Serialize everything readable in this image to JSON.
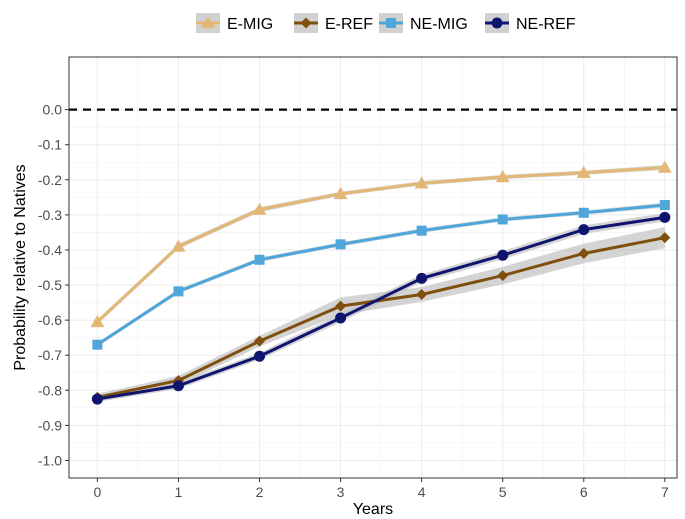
{
  "chart_data": {
    "type": "line",
    "xlabel": "Years",
    "ylabel": "Probability relative to Natives",
    "x": [
      0,
      1,
      2,
      3,
      4,
      5,
      6,
      7
    ],
    "xticks": [
      "0",
      "1",
      "2",
      "3",
      "4",
      "5",
      "6",
      "7"
    ],
    "xlim": [
      -0.35,
      7.15
    ],
    "ylim": [
      -1.05,
      0.15
    ],
    "yticks": [
      0.0,
      -0.1,
      -0.2,
      -0.3,
      -0.4,
      -0.5,
      -0.6,
      -0.7,
      -0.8,
      -0.9,
      -1.0
    ],
    "ytick_labels": [
      "0.0",
      "-0.1",
      "-0.2",
      "-0.3",
      "-0.4",
      "-0.5",
      "-0.6",
      "-0.7",
      "-0.8",
      "-0.9",
      "-1.0"
    ],
    "reference_line": {
      "y": 0.0,
      "style": "dashed",
      "color": "#000000"
    },
    "grid": true,
    "legend_position": "top",
    "series": [
      {
        "name": "E-MIG",
        "color": "#E3B876",
        "marker": "triangle",
        "values": [
          -0.605,
          -0.39,
          -0.285,
          -0.24,
          -0.21,
          -0.192,
          -0.18,
          -0.165
        ],
        "ci_lower": [
          -0.612,
          -0.397,
          -0.292,
          -0.246,
          -0.216,
          -0.198,
          -0.186,
          -0.172
        ],
        "ci_upper": [
          -0.598,
          -0.383,
          -0.278,
          -0.234,
          -0.204,
          -0.186,
          -0.174,
          -0.158
        ]
      },
      {
        "name": "E-REF",
        "color": "#7F4F0E",
        "marker": "diamond",
        "values": [
          -0.82,
          -0.772,
          -0.66,
          -0.56,
          -0.527,
          -0.473,
          -0.41,
          -0.365
        ],
        "ci_lower": [
          -0.83,
          -0.785,
          -0.675,
          -0.585,
          -0.548,
          -0.498,
          -0.438,
          -0.395
        ],
        "ci_upper": [
          -0.81,
          -0.759,
          -0.645,
          -0.535,
          -0.506,
          -0.448,
          -0.382,
          -0.335
        ]
      },
      {
        "name": "NE-MIG",
        "color": "#4FA6DA",
        "marker": "square",
        "values": [
          -0.67,
          -0.518,
          -0.428,
          -0.384,
          -0.345,
          -0.313,
          -0.294,
          -0.272
        ],
        "ci_lower": [
          -0.676,
          -0.524,
          -0.434,
          -0.39,
          -0.351,
          -0.319,
          -0.3,
          -0.279
        ],
        "ci_upper": [
          -0.664,
          -0.512,
          -0.422,
          -0.378,
          -0.339,
          -0.307,
          -0.288,
          -0.265
        ]
      },
      {
        "name": "NE-REF",
        "color": "#0F156E",
        "marker": "circle",
        "values": [
          -0.825,
          -0.787,
          -0.703,
          -0.594,
          -0.481,
          -0.415,
          -0.342,
          -0.307
        ],
        "ci_lower": [
          -0.833,
          -0.796,
          -0.713,
          -0.606,
          -0.492,
          -0.427,
          -0.354,
          -0.319
        ],
        "ci_upper": [
          -0.817,
          -0.778,
          -0.693,
          -0.582,
          -0.47,
          -0.403,
          -0.33,
          -0.295
        ]
      }
    ]
  }
}
